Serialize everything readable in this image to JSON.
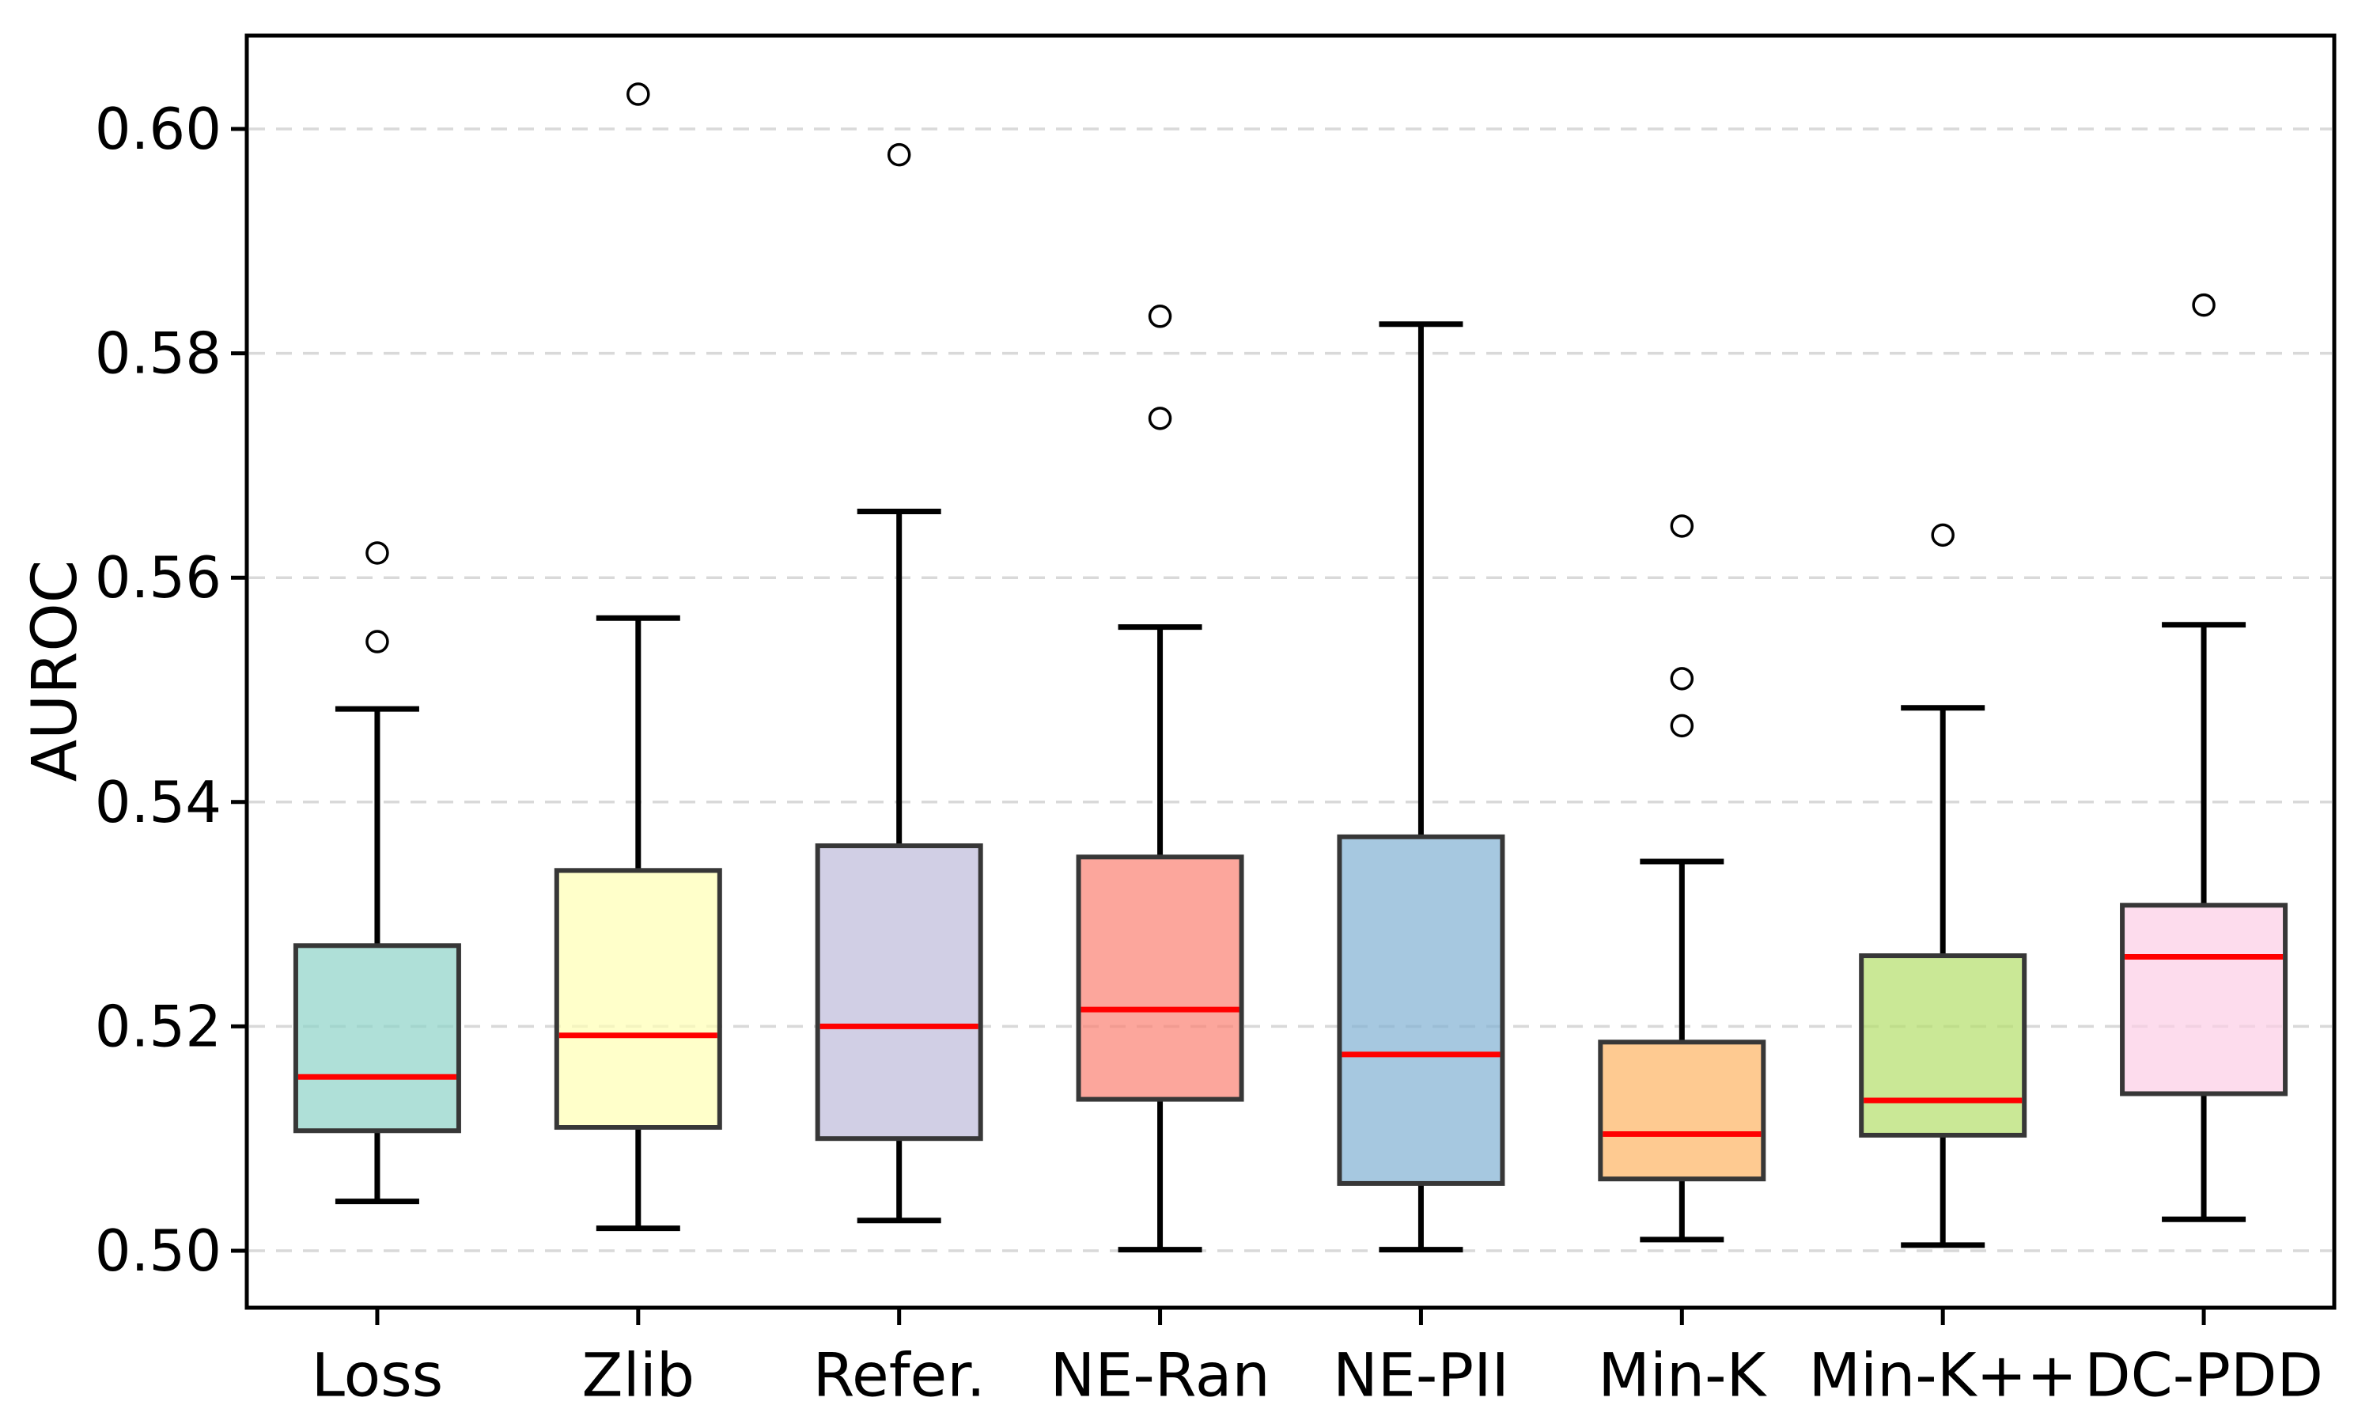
{
  "chart_data": {
    "type": "boxplot",
    "title": "",
    "xlabel": "",
    "ylabel": "AUROC",
    "ylim": [
      0.495,
      0.608
    ],
    "ytick_values": [
      0.5,
      0.52,
      0.54,
      0.56,
      0.58,
      0.6
    ],
    "ytick_labels": [
      "0.50",
      "0.52",
      "0.54",
      "0.56",
      "0.58",
      "0.60"
    ],
    "grid": {
      "axis": "y",
      "style": "dashed",
      "color": "#d9d9d9",
      "on": true
    },
    "legend": "none",
    "style": {
      "median_color": "#ff0000",
      "box_edge_color": "#373737",
      "whisker_color": "#000000",
      "spine_color": "#000000",
      "flier_marker": "open-circle",
      "fill_opacity": 0.7,
      "palette_name": "Set3"
    },
    "categories": [
      "Loss",
      "Zlib",
      "Refer.",
      "NE-Ran",
      "NE-PII",
      "Min-K",
      "Min-K++",
      "DC-PDD"
    ],
    "series": [
      {
        "name": "Loss",
        "color": "#8dd3c7",
        "whislo": 0.5044,
        "q1": 0.5107,
        "med": 0.5155,
        "q3": 0.5272,
        "whishi": 0.5483,
        "fliers": [
          0.5622,
          0.5543
        ]
      },
      {
        "name": "Zlib",
        "color": "#ffffb3",
        "whislo": 0.502,
        "q1": 0.511,
        "med": 0.5192,
        "q3": 0.5339,
        "whishi": 0.5564,
        "fliers": [
          0.6031
        ]
      },
      {
        "name": "Refer.",
        "color": "#bebada",
        "whislo": 0.5027,
        "q1": 0.51,
        "med": 0.52,
        "q3": 0.5361,
        "whishi": 0.5659,
        "fliers": [
          0.5977
        ]
      },
      {
        "name": "NE-Ran",
        "color": "#fb8072",
        "whislo": 0.5001,
        "q1": 0.5135,
        "med": 0.5215,
        "q3": 0.5351,
        "whishi": 0.5556,
        "fliers": [
          0.5833,
          0.5742
        ]
      },
      {
        "name": "NE-PII",
        "color": "#80b1d3",
        "whislo": 0.5001,
        "q1": 0.506,
        "med": 0.5175,
        "q3": 0.5369,
        "whishi": 0.5826,
        "fliers": []
      },
      {
        "name": "Min-K",
        "color": "#fdb462",
        "whislo": 0.501,
        "q1": 0.5064,
        "med": 0.5104,
        "q3": 0.5186,
        "whishi": 0.5347,
        "fliers": [
          0.5646,
          0.551,
          0.5468
        ]
      },
      {
        "name": "Min-K++",
        "color": "#b3de69",
        "whislo": 0.5005,
        "q1": 0.5103,
        "med": 0.5134,
        "q3": 0.5263,
        "whishi": 0.5484,
        "fliers": [
          0.5638
        ]
      },
      {
        "name": "DC-PDD",
        "color": "#fccde5",
        "whislo": 0.5028,
        "q1": 0.514,
        "med": 0.5262,
        "q3": 0.5308,
        "whishi": 0.5558,
        "fliers": [
          0.5843
        ]
      }
    ]
  }
}
